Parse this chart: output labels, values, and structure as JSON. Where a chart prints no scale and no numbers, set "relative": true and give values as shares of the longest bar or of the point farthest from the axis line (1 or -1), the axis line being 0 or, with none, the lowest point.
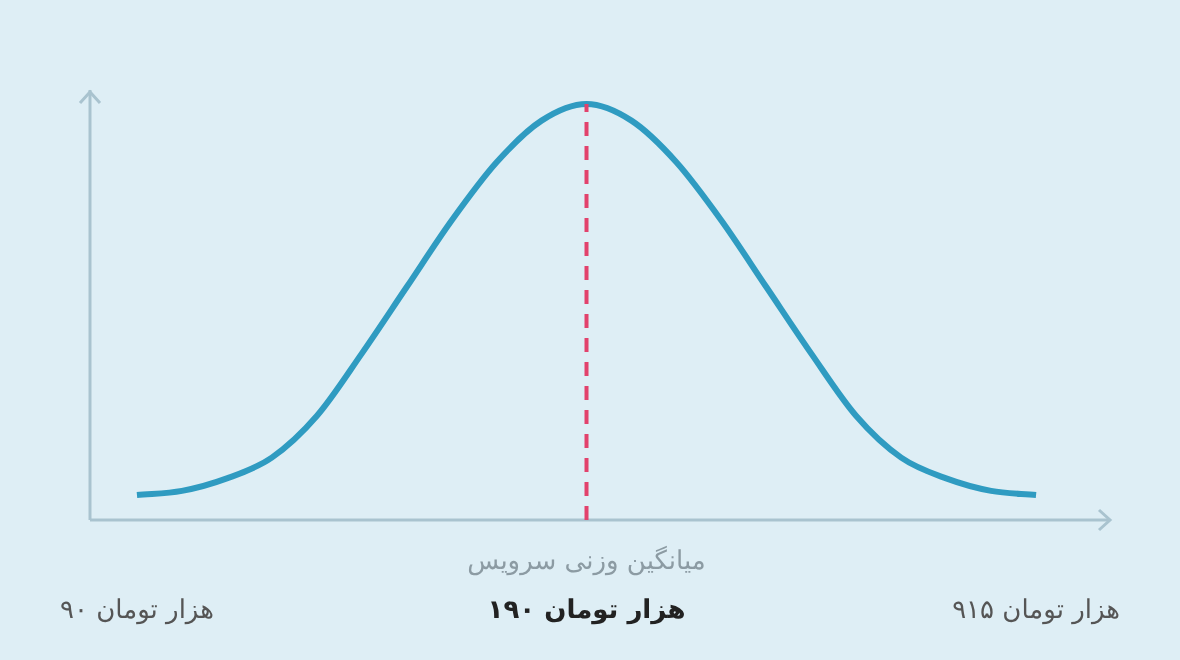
{
  "chart_data": {
    "type": "line",
    "relative": true,
    "color": "#2f9bc1",
    "marker": "none",
    "line_style": "solid",
    "grid": false,
    "legend": false,
    "tick_labels": "x",
    "categories": [
      "۹۰ هزار تومان",
      null,
      null,
      null,
      null,
      null,
      null,
      null,
      null,
      null,
      "۱۹۰ هزار تومان",
      null,
      null,
      null,
      null,
      null,
      null,
      null,
      null,
      null,
      "۹۱۵ هزار تومان"
    ],
    "values": [
      0.06,
      0.07,
      0.1,
      0.15,
      0.25,
      0.4,
      0.56,
      0.72,
      0.86,
      0.96,
      1.0,
      0.96,
      0.86,
      0.72,
      0.56,
      0.4,
      0.25,
      0.15,
      0.1,
      0.07,
      0.06
    ],
    "ref_lines": [
      {
        "axis": "x",
        "value": "۱۹۰ هزار تومان",
        "label": "میانگین وزنی سرویس",
        "color": "#e2426c",
        "line_style": "dashed"
      }
    ]
  }
}
